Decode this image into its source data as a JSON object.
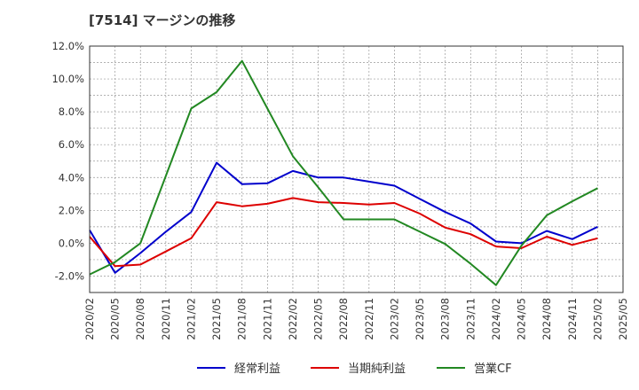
{
  "chart_data": {
    "type": "line",
    "title": "[7514]  マージンの推移",
    "x": [
      "2020/02",
      "2020/05",
      "2020/08",
      "2020/11",
      "2021/02",
      "2021/05",
      "2021/08",
      "2021/11",
      "2022/02",
      "2022/05",
      "2022/08",
      "2022/11",
      "2023/02",
      "2023/05",
      "2023/08",
      "2023/11",
      "2024/02",
      "2024/05",
      "2024/08",
      "2024/11",
      "2025/02",
      "2025/05"
    ],
    "y_ticks": [
      "12.0%",
      "10.0%",
      "8.0%",
      "6.0%",
      "4.0%",
      "2.0%",
      "0.0%",
      "-2.0%"
    ],
    "ylim": [
      -3.0,
      12.0
    ],
    "grid": true,
    "legend_position": "bottom",
    "series": [
      {
        "name": "経常利益",
        "color": "#0000cc",
        "values": [
          0.8,
          -1.8,
          -0.6,
          0.7,
          1.9,
          4.9,
          3.6,
          3.65,
          4.4,
          4.0,
          4.0,
          3.75,
          3.5,
          2.7,
          1.9,
          1.2,
          0.1,
          0.0,
          0.75,
          0.25,
          1.0,
          null
        ]
      },
      {
        "name": "当期純利益",
        "color": "#dd0000",
        "values": [
          0.4,
          -1.4,
          -1.3,
          -0.5,
          0.3,
          2.5,
          2.25,
          2.4,
          2.75,
          2.5,
          2.45,
          2.35,
          2.45,
          1.8,
          0.95,
          0.55,
          -0.2,
          -0.3,
          0.4,
          -0.1,
          0.3,
          null
        ]
      },
      {
        "name": "営業CF",
        "color": "#228822",
        "values": [
          -1.9,
          -1.15,
          0.0,
          4.1,
          8.2,
          9.2,
          11.1,
          8.2,
          5.3,
          3.4,
          1.45,
          1.45,
          1.45,
          0.7,
          -0.05,
          -1.25,
          -2.55,
          -0.15,
          1.7,
          2.55,
          3.35,
          null
        ]
      }
    ]
  }
}
